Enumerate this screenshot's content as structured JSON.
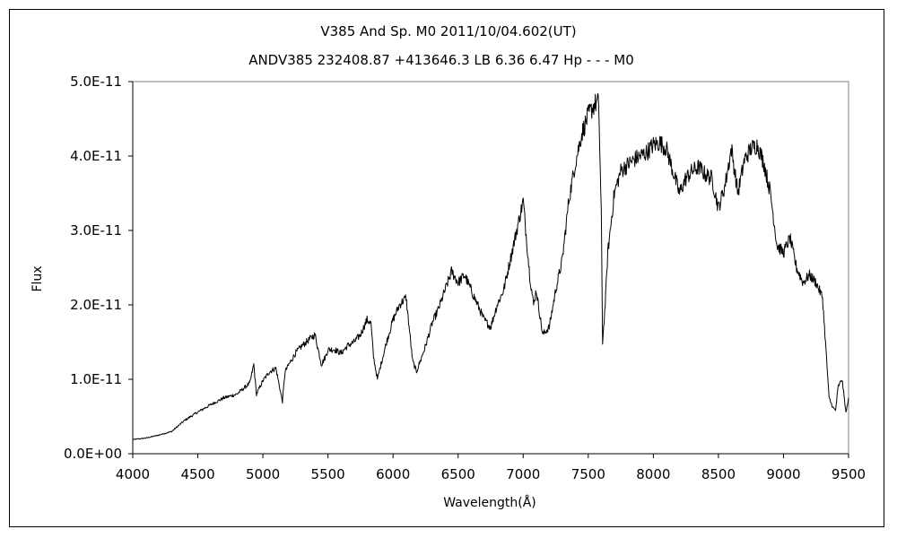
{
  "chart_data": {
    "type": "line",
    "title": "V385 And    Sp. M0    2011/10/04.602(UT)",
    "subtitle": "ANDV385 232408.87 +413646.3 LB 6.36 6.47 Hp - - - M0",
    "xlabel": "Wavelength(Å)",
    "ylabel": "Flux",
    "xlim": [
      4000,
      9500
    ],
    "ylim": [
      0,
      5e-11
    ],
    "grid": false,
    "legend": "none",
    "x_tick_labels": [
      "4000",
      "4500",
      "5000",
      "5500",
      "6000",
      "6500",
      "7000",
      "7500",
      "8000",
      "8500",
      "9000",
      "9500"
    ],
    "y_tick_labels": [
      "0.0E+00",
      "1.0E-11",
      "2.0E-11",
      "3.0E-11",
      "4.0E-11",
      "5.0E-11"
    ],
    "series": [
      {
        "x": [
          4000,
          4100,
          4200,
          4300,
          4400,
          4500,
          4600,
          4700,
          4800,
          4900,
          4930,
          4950,
          5000,
          5050,
          5100,
          5150,
          5170,
          5200,
          5250,
          5300,
          5400,
          5450,
          5480,
          5500,
          5550,
          5600,
          5650,
          5700,
          5750,
          5800,
          5830,
          5850,
          5880,
          5900,
          5950,
          6000,
          6050,
          6100,
          6150,
          6180,
          6200,
          6250,
          6300,
          6350,
          6400,
          6450,
          6500,
          6550,
          6600,
          6650,
          6700,
          6750,
          6800,
          6850,
          6900,
          6950,
          7000,
          7050,
          7080,
          7100,
          7150,
          7200,
          7250,
          7300,
          7350,
          7400,
          7450,
          7500,
          7550,
          7580,
          7600,
          7610,
          7630,
          7650,
          7700,
          7750,
          7800,
          7850,
          7900,
          7950,
          8000,
          8050,
          8100,
          8150,
          8200,
          8250,
          8300,
          8350,
          8400,
          8450,
          8500,
          8550,
          8600,
          8650,
          8700,
          8750,
          8800,
          8850,
          8900,
          8950,
          9000,
          9050,
          9100,
          9150,
          9200,
          9250,
          9300,
          9330,
          9350,
          9380,
          9400,
          9420,
          9450,
          9480,
          9500
        ],
        "y": [
          1.9e-12,
          2.1e-12,
          2.5e-12,
          3e-12,
          4.5e-12,
          5.6e-12,
          6.6e-12,
          7.5e-12,
          8e-12,
          9.5e-12,
          1.2e-11,
          8e-12,
          9.8e-12,
          1.1e-11,
          1.15e-11,
          7e-12,
          1.1e-11,
          1.2e-11,
          1.35e-11,
          1.45e-11,
          1.6e-11,
          1.2e-11,
          1.3e-11,
          1.4e-11,
          1.4e-11,
          1.35e-11,
          1.45e-11,
          1.5e-11,
          1.6e-11,
          1.8e-11,
          1.75e-11,
          1.3e-11,
          1e-11,
          1.15e-11,
          1.5e-11,
          1.8e-11,
          2e-11,
          2.1e-11,
          1.25e-11,
          1.1e-11,
          1.2e-11,
          1.45e-11,
          1.75e-11,
          1.95e-11,
          2.2e-11,
          2.45e-11,
          2.3e-11,
          2.4e-11,
          2.2e-11,
          2e-11,
          1.8e-11,
          1.7e-11,
          2e-11,
          2.2e-11,
          2.6e-11,
          3e-11,
          3.4e-11,
          2.4e-11,
          2e-11,
          2.2e-11,
          1.6e-11,
          1.7e-11,
          2.2e-11,
          2.6e-11,
          3.4e-11,
          3.9e-11,
          4.3e-11,
          4.55e-11,
          4.7e-11,
          4.72e-11,
          3.2e-11,
          1.5e-11,
          2e-11,
          2.7e-11,
          3.5e-11,
          3.8e-11,
          3.88e-11,
          3.95e-11,
          4e-11,
          4.05e-11,
          4.15e-11,
          4.18e-11,
          4.1e-11,
          3.8e-11,
          3.5e-11,
          3.7e-11,
          3.8e-11,
          3.85e-11,
          3.75e-11,
          3.7e-11,
          3.3e-11,
          3.6e-11,
          4.1e-11,
          3.5e-11,
          3.95e-11,
          4.1e-11,
          4.15e-11,
          3.9e-11,
          3.5e-11,
          2.8e-11,
          2.7e-11,
          2.9e-11,
          2.5e-11,
          2.3e-11,
          2.4e-11,
          2.3e-11,
          2.1e-11,
          1.3e-11,
          7.5e-12,
          6.2e-12,
          5.8e-12,
          9e-12,
          1e-11,
          5.5e-12,
          7.5e-12
        ]
      }
    ]
  }
}
